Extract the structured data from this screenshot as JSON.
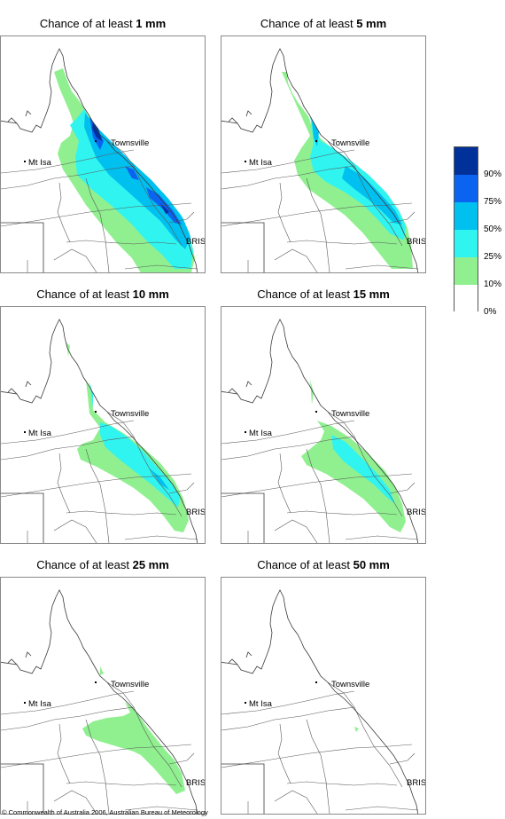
{
  "panels": [
    {
      "title_prefix": "Chance of at least ",
      "amount": "1 mm"
    },
    {
      "title_prefix": "Chance of at least ",
      "amount": "5 mm"
    },
    {
      "title_prefix": "Chance of at least ",
      "amount": "10 mm"
    },
    {
      "title_prefix": "Chance of at least ",
      "amount": "15 mm"
    },
    {
      "title_prefix": "Chance of at least ",
      "amount": "25 mm"
    },
    {
      "title_prefix": "Chance of at least ",
      "amount": "50 mm"
    }
  ],
  "places": {
    "townsville": "Townsville",
    "mt_isa": "Mt Isa",
    "brisbane": "BRIS"
  },
  "legend": {
    "labels": [
      "90%",
      "75%",
      "50%",
      "25%",
      "10%",
      "0%"
    ],
    "colors": [
      "#00309a",
      "#0a64f0",
      "#00c0f0",
      "#30f4f0",
      "#90f090",
      "#ffffff"
    ]
  },
  "copyright": "© Commonwealth of Australia 2006, Australian Bureau of Meteorology"
}
